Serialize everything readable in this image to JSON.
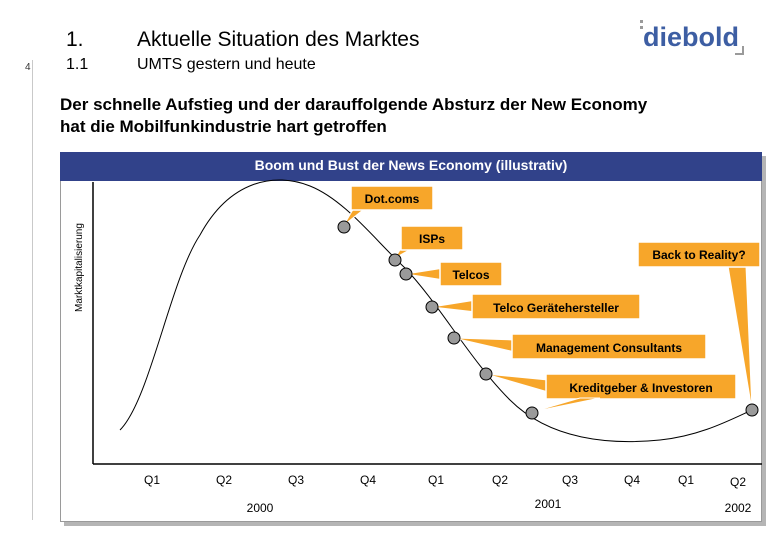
{
  "header": {
    "page_number": "4",
    "section_number": "1.",
    "section_title": "Aktuelle Situation des Marktes",
    "subsection_number": "1.1",
    "subsection_title": "UMTS gestern und heute",
    "logo_text": "diebold",
    "headline_line1": "Der schnelle Aufstieg und der darauffolgende Absturz der New Economy",
    "headline_line2": "hat die Mobilfunkindustrie hart getroffen"
  },
  "diagram": {
    "banner_title": "Boom und Bust der News Economy (illustrativ)",
    "y_axis_label": "Marktkapitalisierung",
    "quarters": [
      "Q1",
      "Q2",
      "Q3",
      "Q4",
      "Q1",
      "Q2",
      "Q3",
      "Q4",
      "Q1",
      "Q2"
    ],
    "years": [
      "2000",
      "2001",
      "2002"
    ],
    "callouts": [
      "Dot.coms",
      "ISPs",
      "Back to Reality?",
      "Telcos",
      "Telco Gerätehersteller",
      "Management Consultants",
      "Kreditgeber & Investoren"
    ],
    "colors": {
      "banner": "#31428a",
      "callout_fill": "#f7a62a",
      "callout_border": "#ffffff",
      "marker_fill": "#9a9a9a",
      "curve": "#000000"
    }
  }
}
